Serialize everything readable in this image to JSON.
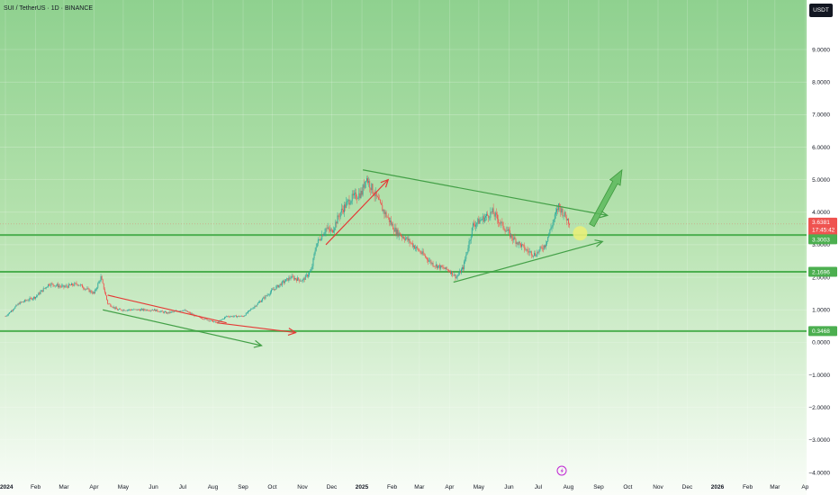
{
  "header": {
    "symbol_title": "SUI / TetherUS · 1D · BINANCE",
    "currency": "USDT"
  },
  "colors": {
    "background_top": "#8fd18f",
    "background_bottom": "#ffffff",
    "up_candle": "#26a69a",
    "down_candle": "#ef5350",
    "level_line": "#4caf50",
    "trend_line_green": "#43a047",
    "trend_line_red": "#e53935",
    "current_price_badge": "#ef5350",
    "level_badge": "#4caf50",
    "highlight_circle": "#e8ee7a",
    "projection_arrow": "#5cb85c"
  },
  "chart_data": {
    "type": "candlestick",
    "title": "",
    "xlabel": "",
    "ylabel": "",
    "y_axis_label": "USDT",
    "ylim": [
      -4,
      10.5
    ],
    "y_ticks": [
      9,
      8,
      7,
      6,
      5,
      4,
      3,
      2,
      1,
      0,
      -1,
      -2,
      -3,
      -4
    ],
    "y_tick_labels": [
      "9.0000",
      "8.0000",
      "7.0000",
      "6.0000",
      "5.0000",
      "4.0000",
      "3.0000",
      "2.0000",
      "1.0000",
      "0.0000",
      "−1.0000",
      "−2.0000",
      "−3.0000",
      "−4.0000"
    ],
    "x_tick_labels": [
      "2024",
      "Feb",
      "Mar",
      "Apr",
      "May",
      "Jun",
      "Jul",
      "Aug",
      "Sep",
      "Oct",
      "Nov",
      "Dec",
      "2025",
      "Feb",
      "Mar",
      "Apr",
      "May",
      "Jun",
      "Jul",
      "Aug",
      "Sep",
      "Oct",
      "Nov",
      "Dec",
      "2026",
      "Feb",
      "Mar",
      "Ap"
    ],
    "bold_x_ticks": [
      "2024",
      "2025",
      "2026"
    ],
    "price_path": [
      [
        "2024-01-01",
        0.8
      ],
      [
        "2024-01-15",
        1.2
      ],
      [
        "2024-02-01",
        1.4
      ],
      [
        "2024-02-15",
        1.8
      ],
      [
        "2024-03-01",
        1.7
      ],
      [
        "2024-03-15",
        1.8
      ],
      [
        "2024-04-01",
        1.5
      ],
      [
        "2024-04-08",
        2.0
      ],
      [
        "2024-04-15",
        1.2
      ],
      [
        "2024-04-25",
        1.0
      ],
      [
        "2024-05-15",
        1.0
      ],
      [
        "2024-06-01",
        1.0
      ],
      [
        "2024-06-15",
        0.9
      ],
      [
        "2024-07-01",
        1.0
      ],
      [
        "2024-07-15",
        0.8
      ],
      [
        "2024-08-05",
        0.6
      ],
      [
        "2024-08-15",
        0.8
      ],
      [
        "2024-09-01",
        0.8
      ],
      [
        "2024-09-20",
        1.3
      ],
      [
        "2024-10-01",
        1.6
      ],
      [
        "2024-10-10",
        1.8
      ],
      [
        "2024-10-20",
        2.0
      ],
      [
        "2024-11-01",
        1.9
      ],
      [
        "2024-11-10",
        2.2
      ],
      [
        "2024-11-15",
        3.0
      ],
      [
        "2024-11-25",
        3.5
      ],
      [
        "2024-12-01",
        3.4
      ],
      [
        "2024-12-10",
        4.0
      ],
      [
        "2024-12-20",
        4.4
      ],
      [
        "2025-01-01",
        4.6
      ],
      [
        "2025-01-05",
        5.1
      ],
      [
        "2025-01-10",
        4.8
      ],
      [
        "2025-01-20",
        4.2
      ],
      [
        "2025-01-28",
        3.8
      ],
      [
        "2025-02-05",
        3.4
      ],
      [
        "2025-02-15",
        3.2
      ],
      [
        "2025-03-01",
        2.8
      ],
      [
        "2025-03-15",
        2.4
      ],
      [
        "2025-04-01",
        2.2
      ],
      [
        "2025-04-08",
        2.0
      ],
      [
        "2025-04-15",
        2.3
      ],
      [
        "2025-04-25",
        3.6
      ],
      [
        "2025-05-05",
        3.8
      ],
      [
        "2025-05-15",
        4.0
      ],
      [
        "2025-05-25",
        3.6
      ],
      [
        "2025-06-05",
        3.2
      ],
      [
        "2025-06-20",
        2.8
      ],
      [
        "2025-06-28",
        2.7
      ],
      [
        "2025-07-08",
        3.0
      ],
      [
        "2025-07-15",
        3.6
      ],
      [
        "2025-07-22",
        4.2
      ],
      [
        "2025-07-28",
        3.9
      ],
      [
        "2025-08-03",
        3.64
      ]
    ],
    "current_price": {
      "value": "3.6381",
      "countdown": "17:45:42"
    },
    "horizontal_levels": [
      {
        "value": 3.3003,
        "label": "3.3003"
      },
      {
        "value": 2.1696,
        "label": "2.1696"
      },
      {
        "value": 0.3468,
        "label": "0.3468"
      }
    ],
    "drawings": [
      {
        "name": "channel-upper-red",
        "color": "red",
        "from": [
          "2024-04-15",
          1.45
        ],
        "to": [
          "2024-08-15",
          0.6
        ]
      },
      {
        "name": "channel-lower-green",
        "color": "green",
        "from": [
          "2024-04-10",
          1.0
        ],
        "to": [
          "2024-09-20",
          -0.1
        ],
        "arrow": true
      },
      {
        "name": "projection-red",
        "color": "red",
        "from": [
          "2024-08-05",
          0.6
        ],
        "to": [
          "2024-10-25",
          0.3
        ],
        "arrow": true
      },
      {
        "name": "impulse-red",
        "color": "red",
        "from": [
          "2024-11-25",
          3.0
        ],
        "to": [
          "2025-01-28",
          5.0
        ],
        "arrow": true
      },
      {
        "name": "wedge-upper-green",
        "color": "green",
        "from": [
          "2025-01-02",
          5.3
        ],
        "to": [
          "2025-09-10",
          3.9
        ],
        "arrow": true
      },
      {
        "name": "wedge-lower-green",
        "color": "green",
        "from": [
          "2025-04-05",
          1.85
        ],
        "to": [
          "2025-09-05",
          3.1
        ],
        "arrow": true
      }
    ],
    "projection_arrow": {
      "from": [
        "2025-08-25",
        3.6
      ],
      "to": [
        "2025-09-25",
        5.3
      ]
    },
    "highlight": {
      "date": "2025-08-13",
      "value": 3.35
    }
  }
}
